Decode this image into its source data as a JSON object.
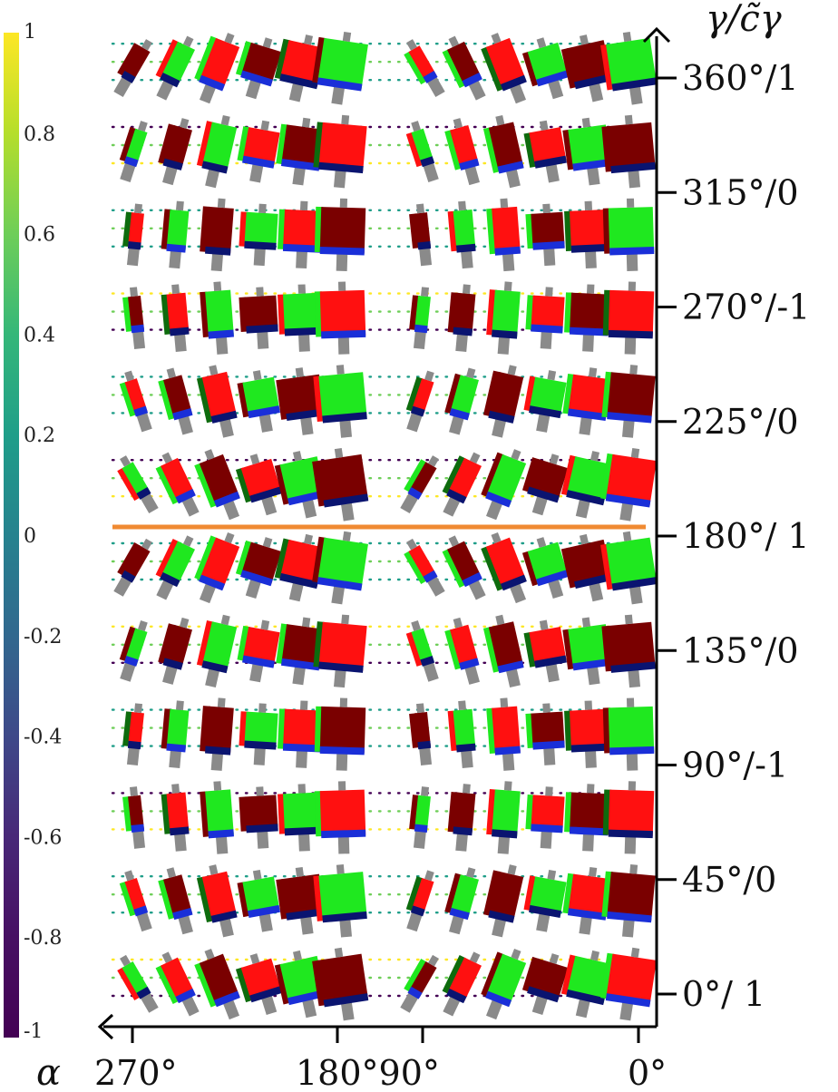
{
  "figure": {
    "y_axis_title": "γ/c̃γ",
    "x_axis_title": "",
    "colorbar_symbol": "α"
  },
  "colorbar": {
    "ticks": [
      "1",
      "0.8",
      "0.6",
      "0.4",
      "0.2",
      "0",
      "-0.2",
      "-0.4",
      "-0.6",
      "-0.8",
      "-1"
    ],
    "colors": [
      "#fde725",
      "#b5de2b",
      "#6ece58",
      "#35b779",
      "#1f9e89",
      "#26828e",
      "#31688e",
      "#3e4989",
      "#482878",
      "#440154"
    ]
  },
  "y_ticks": [
    {
      "label": "360°/1",
      "gamma": 360,
      "c": 1
    },
    {
      "label": "315°/0",
      "gamma": 315,
      "c": 0
    },
    {
      "label": "270°/-1",
      "gamma": 270,
      "c": -1
    },
    {
      "label": "225°/0",
      "gamma": 225,
      "c": 0
    },
    {
      "label": "180°/ 1",
      "gamma": 180,
      "c": 1
    },
    {
      "label": "135°/0",
      "gamma": 135,
      "c": 0
    },
    {
      "label": "90°/-1",
      "gamma": 90,
      "c": -1
    },
    {
      "label": "45°/0",
      "gamma": 45,
      "c": 0
    },
    {
      "label": "0°/ 1",
      "gamma": 0,
      "c": 1
    }
  ],
  "x_ticks": [
    {
      "label": "270°"
    },
    {
      "label": "180°90°"
    },
    {
      "label": "0°"
    }
  ],
  "divider_gamma": 180,
  "colors": {
    "red": "#ff1010",
    "dark_red": "#7a0000",
    "green": "#1fe81f",
    "dark_green": "#0d6b0d",
    "navy": "#0a1470",
    "blue": "#1a2fd8",
    "gray": "#8a8a8a",
    "divider": "#f08a32"
  }
}
